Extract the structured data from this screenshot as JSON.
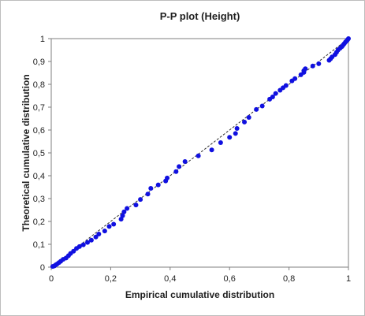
{
  "chart_data": {
    "type": "scatter",
    "title": "P-P  plot (Height)",
    "xlabel": "Empirical cumulative distribution",
    "ylabel": "Theoretical cumulative distribution",
    "xlim": [
      0,
      1
    ],
    "ylim": [
      0,
      1
    ],
    "x_ticks": [
      0,
      0.2,
      0.4,
      0.6,
      0.8,
      1
    ],
    "x_tick_labels": [
      "0",
      "0,2",
      "0,4",
      "0,6",
      "0,8",
      "1"
    ],
    "y_ticks": [
      0,
      0.1,
      0.2,
      0.3,
      0.4,
      0.5,
      0.6,
      0.7,
      0.8,
      0.9,
      1
    ],
    "y_tick_labels": [
      "0",
      "0,1",
      "0,2",
      "0,3",
      "0,4",
      "0,5",
      "0,6",
      "0,7",
      "0,8",
      "0,9",
      "1"
    ],
    "grid": false,
    "reference_line": {
      "from": [
        0,
        0
      ],
      "to": [
        1,
        1
      ],
      "style": "dashed",
      "color": "#2d2d2d"
    },
    "point_color": "#1010e0",
    "points": [
      [
        0.005,
        0.003
      ],
      [
        0.01,
        0.005
      ],
      [
        0.015,
        0.01
      ],
      [
        0.02,
        0.014
      ],
      [
        0.026,
        0.02
      ],
      [
        0.032,
        0.026
      ],
      [
        0.04,
        0.034
      ],
      [
        0.05,
        0.04
      ],
      [
        0.058,
        0.05
      ],
      [
        0.065,
        0.06
      ],
      [
        0.075,
        0.07
      ],
      [
        0.085,
        0.082
      ],
      [
        0.095,
        0.09
      ],
      [
        0.108,
        0.098
      ],
      [
        0.122,
        0.108
      ],
      [
        0.135,
        0.118
      ],
      [
        0.15,
        0.132
      ],
      [
        0.16,
        0.145
      ],
      [
        0.18,
        0.158
      ],
      [
        0.195,
        0.178
      ],
      [
        0.21,
        0.188
      ],
      [
        0.235,
        0.21
      ],
      [
        0.24,
        0.225
      ],
      [
        0.245,
        0.242
      ],
      [
        0.255,
        0.257
      ],
      [
        0.285,
        0.272
      ],
      [
        0.3,
        0.296
      ],
      [
        0.325,
        0.32
      ],
      [
        0.335,
        0.345
      ],
      [
        0.36,
        0.36
      ],
      [
        0.385,
        0.377
      ],
      [
        0.39,
        0.39
      ],
      [
        0.42,
        0.418
      ],
      [
        0.43,
        0.44
      ],
      [
        0.45,
        0.462
      ],
      [
        0.495,
        0.487
      ],
      [
        0.54,
        0.513
      ],
      [
        0.57,
        0.545
      ],
      [
        0.6,
        0.568
      ],
      [
        0.62,
        0.585
      ],
      [
        0.625,
        0.607
      ],
      [
        0.65,
        0.635
      ],
      [
        0.665,
        0.655
      ],
      [
        0.69,
        0.69
      ],
      [
        0.71,
        0.705
      ],
      [
        0.735,
        0.735
      ],
      [
        0.745,
        0.745
      ],
      [
        0.755,
        0.76
      ],
      [
        0.77,
        0.774
      ],
      [
        0.78,
        0.785
      ],
      [
        0.79,
        0.795
      ],
      [
        0.81,
        0.815
      ],
      [
        0.82,
        0.825
      ],
      [
        0.84,
        0.842
      ],
      [
        0.85,
        0.852
      ],
      [
        0.85,
        0.86
      ],
      [
        0.855,
        0.868
      ],
      [
        0.88,
        0.88
      ],
      [
        0.9,
        0.89
      ],
      [
        0.935,
        0.905
      ],
      [
        0.94,
        0.912
      ],
      [
        0.945,
        0.92
      ],
      [
        0.955,
        0.93
      ],
      [
        0.96,
        0.94
      ],
      [
        0.965,
        0.95
      ],
      [
        0.972,
        0.958
      ],
      [
        0.978,
        0.965
      ],
      [
        0.982,
        0.972
      ],
      [
        0.986,
        0.978
      ],
      [
        0.99,
        0.985
      ],
      [
        0.994,
        0.99
      ],
      [
        0.997,
        0.995
      ],
      [
        1.0,
        1.0
      ]
    ]
  }
}
